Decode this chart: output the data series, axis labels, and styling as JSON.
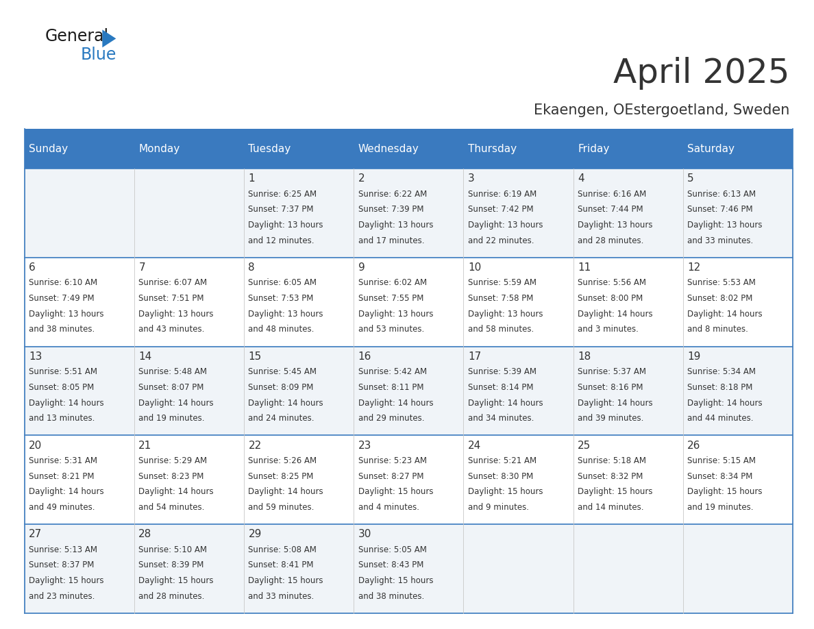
{
  "title": "April 2025",
  "subtitle": "Ekaengen, OEstergoetland, Sweden",
  "days_of_week": [
    "Sunday",
    "Monday",
    "Tuesday",
    "Wednesday",
    "Thursday",
    "Friday",
    "Saturday"
  ],
  "header_bg": "#3a7abf",
  "header_text": "#ffffff",
  "cell_bg_odd": "#f0f4f8",
  "cell_bg_even": "#ffffff",
  "cell_border": "#3a7abf",
  "text_color": "#333333",
  "day_num_color": "#333333",
  "calendar": [
    [
      {
        "day": null,
        "sunrise": null,
        "sunset": null,
        "daylight_h": null,
        "daylight_m": null
      },
      {
        "day": null,
        "sunrise": null,
        "sunset": null,
        "daylight_h": null,
        "daylight_m": null
      },
      {
        "day": 1,
        "sunrise": "6:25 AM",
        "sunset": "7:37 PM",
        "daylight_h": "13 hours",
        "daylight_m": "and 12 minutes."
      },
      {
        "day": 2,
        "sunrise": "6:22 AM",
        "sunset": "7:39 PM",
        "daylight_h": "13 hours",
        "daylight_m": "and 17 minutes."
      },
      {
        "day": 3,
        "sunrise": "6:19 AM",
        "sunset": "7:42 PM",
        "daylight_h": "13 hours",
        "daylight_m": "and 22 minutes."
      },
      {
        "day": 4,
        "sunrise": "6:16 AM",
        "sunset": "7:44 PM",
        "daylight_h": "13 hours",
        "daylight_m": "and 28 minutes."
      },
      {
        "day": 5,
        "sunrise": "6:13 AM",
        "sunset": "7:46 PM",
        "daylight_h": "13 hours",
        "daylight_m": "and 33 minutes."
      }
    ],
    [
      {
        "day": 6,
        "sunrise": "6:10 AM",
        "sunset": "7:49 PM",
        "daylight_h": "13 hours",
        "daylight_m": "and 38 minutes."
      },
      {
        "day": 7,
        "sunrise": "6:07 AM",
        "sunset": "7:51 PM",
        "daylight_h": "13 hours",
        "daylight_m": "and 43 minutes."
      },
      {
        "day": 8,
        "sunrise": "6:05 AM",
        "sunset": "7:53 PM",
        "daylight_h": "13 hours",
        "daylight_m": "and 48 minutes."
      },
      {
        "day": 9,
        "sunrise": "6:02 AM",
        "sunset": "7:55 PM",
        "daylight_h": "13 hours",
        "daylight_m": "and 53 minutes."
      },
      {
        "day": 10,
        "sunrise": "5:59 AM",
        "sunset": "7:58 PM",
        "daylight_h": "13 hours",
        "daylight_m": "and 58 minutes."
      },
      {
        "day": 11,
        "sunrise": "5:56 AM",
        "sunset": "8:00 PM",
        "daylight_h": "14 hours",
        "daylight_m": "and 3 minutes."
      },
      {
        "day": 12,
        "sunrise": "5:53 AM",
        "sunset": "8:02 PM",
        "daylight_h": "14 hours",
        "daylight_m": "and 8 minutes."
      }
    ],
    [
      {
        "day": 13,
        "sunrise": "5:51 AM",
        "sunset": "8:05 PM",
        "daylight_h": "14 hours",
        "daylight_m": "and 13 minutes."
      },
      {
        "day": 14,
        "sunrise": "5:48 AM",
        "sunset": "8:07 PM",
        "daylight_h": "14 hours",
        "daylight_m": "and 19 minutes."
      },
      {
        "day": 15,
        "sunrise": "5:45 AM",
        "sunset": "8:09 PM",
        "daylight_h": "14 hours",
        "daylight_m": "and 24 minutes."
      },
      {
        "day": 16,
        "sunrise": "5:42 AM",
        "sunset": "8:11 PM",
        "daylight_h": "14 hours",
        "daylight_m": "and 29 minutes."
      },
      {
        "day": 17,
        "sunrise": "5:39 AM",
        "sunset": "8:14 PM",
        "daylight_h": "14 hours",
        "daylight_m": "and 34 minutes."
      },
      {
        "day": 18,
        "sunrise": "5:37 AM",
        "sunset": "8:16 PM",
        "daylight_h": "14 hours",
        "daylight_m": "and 39 minutes."
      },
      {
        "day": 19,
        "sunrise": "5:34 AM",
        "sunset": "8:18 PM",
        "daylight_h": "14 hours",
        "daylight_m": "and 44 minutes."
      }
    ],
    [
      {
        "day": 20,
        "sunrise": "5:31 AM",
        "sunset": "8:21 PM",
        "daylight_h": "14 hours",
        "daylight_m": "and 49 minutes."
      },
      {
        "day": 21,
        "sunrise": "5:29 AM",
        "sunset": "8:23 PM",
        "daylight_h": "14 hours",
        "daylight_m": "and 54 minutes."
      },
      {
        "day": 22,
        "sunrise": "5:26 AM",
        "sunset": "8:25 PM",
        "daylight_h": "14 hours",
        "daylight_m": "and 59 minutes."
      },
      {
        "day": 23,
        "sunrise": "5:23 AM",
        "sunset": "8:27 PM",
        "daylight_h": "15 hours",
        "daylight_m": "and 4 minutes."
      },
      {
        "day": 24,
        "sunrise": "5:21 AM",
        "sunset": "8:30 PM",
        "daylight_h": "15 hours",
        "daylight_m": "and 9 minutes."
      },
      {
        "day": 25,
        "sunrise": "5:18 AM",
        "sunset": "8:32 PM",
        "daylight_h": "15 hours",
        "daylight_m": "and 14 minutes."
      },
      {
        "day": 26,
        "sunrise": "5:15 AM",
        "sunset": "8:34 PM",
        "daylight_h": "15 hours",
        "daylight_m": "and 19 minutes."
      }
    ],
    [
      {
        "day": 27,
        "sunrise": "5:13 AM",
        "sunset": "8:37 PM",
        "daylight_h": "15 hours",
        "daylight_m": "and 23 minutes."
      },
      {
        "day": 28,
        "sunrise": "5:10 AM",
        "sunset": "8:39 PM",
        "daylight_h": "15 hours",
        "daylight_m": "and 28 minutes."
      },
      {
        "day": 29,
        "sunrise": "5:08 AM",
        "sunset": "8:41 PM",
        "daylight_h": "15 hours",
        "daylight_m": "and 33 minutes."
      },
      {
        "day": 30,
        "sunrise": "5:05 AM",
        "sunset": "8:43 PM",
        "daylight_h": "15 hours",
        "daylight_m": "and 38 minutes."
      },
      {
        "day": null,
        "sunrise": null,
        "sunset": null,
        "daylight_h": null,
        "daylight_m": null
      },
      {
        "day": null,
        "sunrise": null,
        "sunset": null,
        "daylight_h": null,
        "daylight_m": null
      },
      {
        "day": null,
        "sunrise": null,
        "sunset": null,
        "daylight_h": null,
        "daylight_m": null
      }
    ]
  ],
  "logo_text_general": "General",
  "logo_text_blue": "Blue",
  "logo_color_general": "#1a1a1a",
  "logo_color_blue": "#2979c0"
}
